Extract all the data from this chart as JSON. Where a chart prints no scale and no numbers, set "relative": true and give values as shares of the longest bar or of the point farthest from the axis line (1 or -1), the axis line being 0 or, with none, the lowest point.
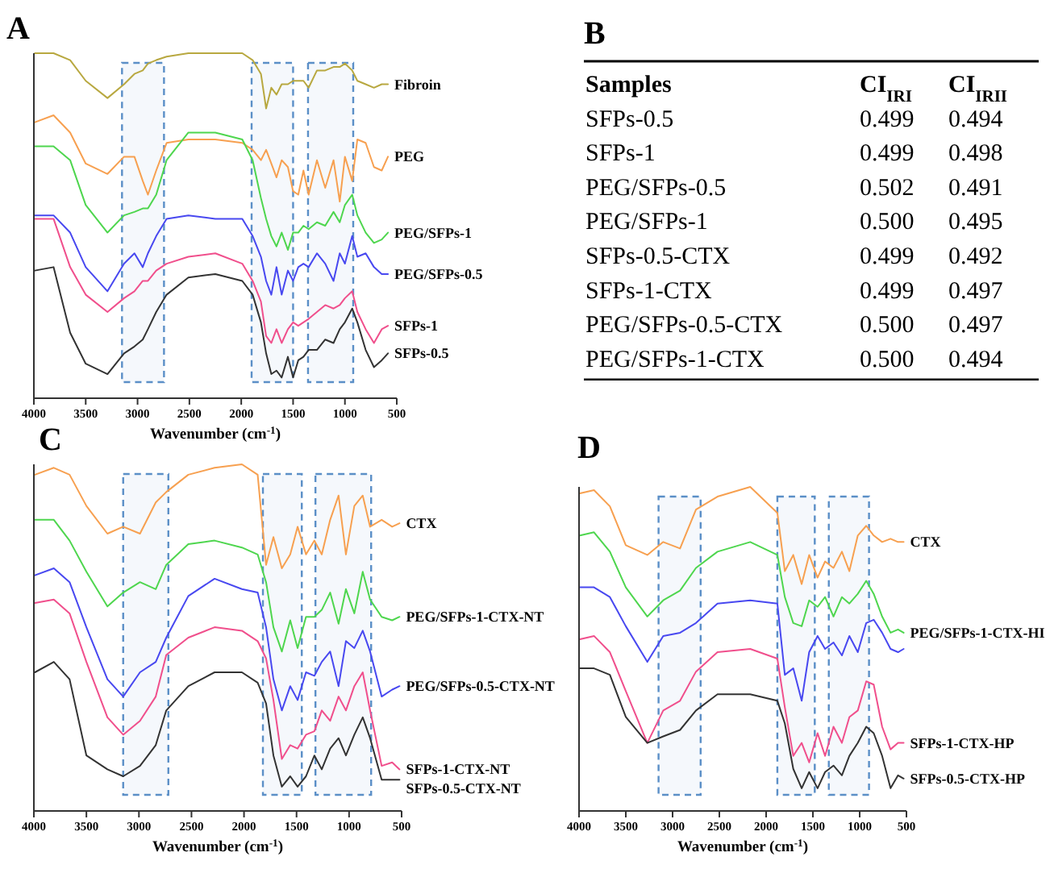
{
  "chart_data": [
    {
      "type": "line",
      "title": "A",
      "xlabel": "Wavenumber (cm$^{-1}$)",
      "relative": true,
      "xlim": [
        4000,
        500
      ],
      "xticks": [
        4000,
        3500,
        3000,
        2500,
        2000,
        1500,
        1000,
        500
      ],
      "x": [
        3990,
        3810,
        3650,
        3500,
        3290,
        3130,
        3030,
        2950,
        2900,
        2820,
        2720,
        2510,
        2250,
        1990,
        1890,
        1810,
        1760,
        1710,
        1660,
        1610,
        1550,
        1500,
        1450,
        1400,
        1350,
        1270,
        1190,
        1110,
        1050,
        1000,
        930,
        880,
        800,
        720,
        645,
        585
      ],
      "bands": [
        {
          "axis": "x",
          "from": 3150,
          "to": 2745,
          "color": "#5b8fc7"
        },
        {
          "axis": "x",
          "from": 1900,
          "to": 1500,
          "color": "#5b8fc7"
        },
        {
          "axis": "x",
          "from": 1356,
          "to": 920,
          "color": "#5b8fc7"
        }
      ],
      "series": [
        {
          "name": "Fibroin",
          "color": "#b8a840",
          "values": [
            1.0,
            1.0,
            0.98,
            0.92,
            0.87,
            0.91,
            0.94,
            0.95,
            0.97,
            0.98,
            0.99,
            1.0,
            1.0,
            1.0,
            0.98,
            0.94,
            0.84,
            0.9,
            0.88,
            0.91,
            0.91,
            0.92,
            0.92,
            0.92,
            0.9,
            0.95,
            0.95,
            0.96,
            0.96,
            0.97,
            0.95,
            0.92,
            0.91,
            0.9,
            0.91,
            0.91
          ]
        },
        {
          "name": "PEG",
          "color": "#f7a050",
          "values": [
            0.8,
            0.82,
            0.77,
            0.68,
            0.65,
            0.7,
            0.7,
            0.63,
            0.59,
            0.66,
            0.74,
            0.75,
            0.75,
            0.74,
            0.72,
            0.69,
            0.72,
            0.68,
            0.64,
            0.69,
            0.67,
            0.6,
            0.59,
            0.66,
            0.59,
            0.69,
            0.61,
            0.69,
            0.57,
            0.7,
            0.63,
            0.75,
            0.74,
            0.67,
            0.66,
            0.7
          ]
        },
        {
          "name": "PEG/SFPs-1",
          "color": "#4ed64e",
          "values": [
            0.73,
            0.73,
            0.69,
            0.56,
            0.48,
            0.53,
            0.54,
            0.55,
            0.55,
            0.59,
            0.69,
            0.77,
            0.77,
            0.75,
            0.69,
            0.58,
            0.52,
            0.47,
            0.44,
            0.48,
            0.43,
            0.48,
            0.48,
            0.5,
            0.49,
            0.51,
            0.5,
            0.54,
            0.51,
            0.56,
            0.59,
            0.53,
            0.48,
            0.45,
            0.46,
            0.48
          ]
        },
        {
          "name": "PEG/SFPs-0.5",
          "color": "#4848f0",
          "values": [
            0.53,
            0.53,
            0.48,
            0.38,
            0.31,
            0.39,
            0.42,
            0.38,
            0.42,
            0.47,
            0.52,
            0.53,
            0.52,
            0.52,
            0.47,
            0.41,
            0.34,
            0.3,
            0.38,
            0.3,
            0.37,
            0.34,
            0.38,
            0.39,
            0.38,
            0.42,
            0.39,
            0.34,
            0.42,
            0.39,
            0.47,
            0.41,
            0.42,
            0.38,
            0.36,
            0.36
          ]
        },
        {
          "name": "SFPs-1",
          "color": "#f04f8c",
          "values": [
            0.52,
            0.52,
            0.38,
            0.3,
            0.25,
            0.29,
            0.31,
            0.34,
            0.34,
            0.37,
            0.39,
            0.41,
            0.42,
            0.39,
            0.34,
            0.28,
            0.18,
            0.16,
            0.2,
            0.16,
            0.2,
            0.22,
            0.21,
            0.22,
            0.23,
            0.25,
            0.27,
            0.26,
            0.27,
            0.29,
            0.31,
            0.25,
            0.2,
            0.16,
            0.2,
            0.21
          ]
        },
        {
          "name": "SFPs-0.5",
          "color": "#333333",
          "values": [
            0.37,
            0.38,
            0.19,
            0.1,
            0.07,
            0.13,
            0.15,
            0.17,
            0.2,
            0.25,
            0.3,
            0.35,
            0.36,
            0.34,
            0.3,
            0.22,
            0.13,
            0.07,
            0.08,
            0.06,
            0.12,
            0.06,
            0.11,
            0.12,
            0.14,
            0.14,
            0.17,
            0.16,
            0.2,
            0.22,
            0.26,
            0.22,
            0.14,
            0.09,
            0.11,
            0.13
          ]
        }
      ]
    },
    {
      "type": "other",
      "title": "B",
      "xlabel": "Samples",
      "categories": [
        "SFPs-0.5",
        "SFPs-1",
        "PEG/SFPs-0.5",
        "PEG/SFPs-1",
        "SFPs-0.5-CTX",
        "SFPs-1-CTX",
        "PEG/SFPs-0.5-CTX",
        "PEG/SFPs-1-CTX"
      ],
      "series": [
        {
          "name": "CI$_{IRI}$",
          "values": [
            0.499,
            0.499,
            0.502,
            0.5,
            0.499,
            0.499,
            0.5,
            0.5
          ],
          "value_labels": [
            "0.499",
            "0.499",
            "0.502",
            "0.500",
            "0.499",
            "0.499",
            "0.500",
            "0.500"
          ]
        },
        {
          "name": "CI$_{IRII}$",
          "values": [
            0.494,
            0.498,
            0.491,
            0.495,
            0.492,
            0.497,
            0.497,
            0.494
          ],
          "value_labels": [
            "0.494",
            "0.498",
            "0.491",
            "0.495",
            "0.492",
            "0.497",
            "0.497",
            "0.494"
          ]
        }
      ]
    },
    {
      "type": "line",
      "title": "C",
      "xlabel": "Wavenumber (cm$^{-1}$)",
      "relative": true,
      "xlim": [
        4000,
        500
      ],
      "xticks": [
        4000,
        3500,
        3000,
        2500,
        2000,
        1500,
        1000,
        500
      ],
      "x": [
        3990,
        3810,
        3660,
        3500,
        3300,
        3150,
        2990,
        2840,
        2740,
        2530,
        2280,
        2020,
        1870,
        1790,
        1720,
        1640,
        1560,
        1490,
        1410,
        1330,
        1260,
        1180,
        1100,
        1030,
        950,
        870,
        800,
        690,
        590,
        520
      ],
      "bands": [
        {
          "axis": "x",
          "from": 3150,
          "to": 2720,
          "color": "#5b8fc7"
        },
        {
          "axis": "x",
          "from": 1820,
          "to": 1450,
          "color": "#5b8fc7"
        },
        {
          "axis": "x",
          "from": 1320,
          "to": 790,
          "color": "#5b8fc7"
        }
      ],
      "series": [
        {
          "name": "CTX",
          "color": "#f7a050",
          "values": [
            0.97,
            0.99,
            0.97,
            0.88,
            0.8,
            0.82,
            0.8,
            0.89,
            0.92,
            0.97,
            0.99,
            1.0,
            0.97,
            0.71,
            0.79,
            0.7,
            0.74,
            0.82,
            0.74,
            0.78,
            0.74,
            0.84,
            0.91,
            0.74,
            0.88,
            0.91,
            0.82,
            0.84,
            0.82,
            0.83
          ]
        },
        {
          "name": "PEG/SFPs-1-CTX-NT",
          "color": "#4ed64e",
          "values": [
            0.84,
            0.84,
            0.78,
            0.69,
            0.59,
            0.63,
            0.66,
            0.64,
            0.71,
            0.77,
            0.78,
            0.76,
            0.74,
            0.66,
            0.53,
            0.46,
            0.55,
            0.47,
            0.56,
            0.56,
            0.58,
            0.63,
            0.54,
            0.64,
            0.57,
            0.69,
            0.61,
            0.56,
            0.55,
            0.56
          ]
        },
        {
          "name": "PEG/SFPs-0.5-CTX-NT",
          "color": "#4848f0",
          "values": [
            0.68,
            0.7,
            0.66,
            0.53,
            0.38,
            0.33,
            0.4,
            0.43,
            0.5,
            0.62,
            0.67,
            0.64,
            0.63,
            0.53,
            0.38,
            0.29,
            0.36,
            0.32,
            0.4,
            0.39,
            0.43,
            0.46,
            0.36,
            0.49,
            0.47,
            0.52,
            0.46,
            0.33,
            0.35,
            0.36
          ]
        },
        {
          "name": "SFPs-1-CTX-NT",
          "color": "#f04f8c",
          "values": [
            0.6,
            0.61,
            0.57,
            0.43,
            0.27,
            0.22,
            0.26,
            0.33,
            0.45,
            0.5,
            0.53,
            0.52,
            0.49,
            0.44,
            0.32,
            0.15,
            0.19,
            0.18,
            0.22,
            0.23,
            0.29,
            0.26,
            0.33,
            0.29,
            0.36,
            0.4,
            0.29,
            0.13,
            0.14,
            0.12
          ]
        },
        {
          "name": "SFPs-0.5-CTX-NT",
          "color": "#333333",
          "values": [
            0.4,
            0.43,
            0.38,
            0.16,
            0.12,
            0.1,
            0.13,
            0.19,
            0.29,
            0.36,
            0.4,
            0.4,
            0.37,
            0.31,
            0.16,
            0.07,
            0.1,
            0.07,
            0.1,
            0.16,
            0.12,
            0.18,
            0.21,
            0.16,
            0.22,
            0.27,
            0.21,
            0.09,
            0.09,
            0.09
          ]
        }
      ]
    },
    {
      "type": "line",
      "title": "D",
      "xlabel": "Wavenumber (cm$^{-1}$)",
      "relative": true,
      "xlim": [
        4000,
        500
      ],
      "xticks": [
        4000,
        3500,
        3000,
        2500,
        2000,
        1500,
        1000,
        500
      ],
      "x": [
        3990,
        3840,
        3670,
        3500,
        3270,
        3100,
        2920,
        2750,
        2520,
        2170,
        1880,
        1800,
        1710,
        1620,
        1540,
        1450,
        1370,
        1280,
        1190,
        1110,
        1020,
        930,
        850,
        760,
        670,
        590,
        530
      ],
      "bands": [
        {
          "axis": "x",
          "from": 3150,
          "to": 2700,
          "color": "#5b8fc7"
        },
        {
          "axis": "x",
          "from": 1880,
          "to": 1480,
          "color": "#5b8fc7"
        },
        {
          "axis": "x",
          "from": 1330,
          "to": 900,
          "color": "#5b8fc7"
        }
      ],
      "series": [
        {
          "name": "CTX",
          "color": "#f7a050",
          "values": [
            0.98,
            0.99,
            0.94,
            0.82,
            0.79,
            0.83,
            0.81,
            0.93,
            0.97,
            1.0,
            0.92,
            0.74,
            0.79,
            0.7,
            0.79,
            0.72,
            0.77,
            0.75,
            0.8,
            0.74,
            0.85,
            0.88,
            0.85,
            0.83,
            0.84,
            0.83,
            0.83
          ]
        },
        {
          "name": "PEG/SFPs-1-CTX-HI",
          "color": "#4ed64e",
          "values": [
            0.85,
            0.86,
            0.8,
            0.69,
            0.6,
            0.65,
            0.68,
            0.75,
            0.8,
            0.83,
            0.79,
            0.66,
            0.58,
            0.57,
            0.65,
            0.63,
            0.66,
            0.6,
            0.66,
            0.64,
            0.67,
            0.71,
            0.67,
            0.6,
            0.55,
            0.56,
            0.55
          ]
        },
        {
          "color": "#4848f0",
          "values": [
            0.69,
            0.69,
            0.66,
            0.57,
            0.46,
            0.54,
            0.55,
            0.58,
            0.64,
            0.65,
            0.64,
            0.42,
            0.44,
            0.34,
            0.49,
            0.54,
            0.5,
            0.52,
            0.48,
            0.54,
            0.49,
            0.58,
            0.59,
            0.55,
            0.5,
            0.49,
            0.5
          ]
        },
        {
          "name": "SFPs-1-CTX-HP",
          "color": "#f04f8c",
          "values": [
            0.53,
            0.54,
            0.49,
            0.37,
            0.21,
            0.31,
            0.34,
            0.43,
            0.49,
            0.5,
            0.47,
            0.32,
            0.17,
            0.21,
            0.15,
            0.24,
            0.17,
            0.26,
            0.21,
            0.29,
            0.31,
            0.4,
            0.39,
            0.26,
            0.19,
            0.21,
            0.21
          ]
        },
        {
          "name": "SFPs-0.5-CTX-HP",
          "color": "#333333",
          "values": [
            0.44,
            0.44,
            0.42,
            0.29,
            0.21,
            0.23,
            0.25,
            0.31,
            0.36,
            0.36,
            0.34,
            0.27,
            0.13,
            0.07,
            0.12,
            0.07,
            0.12,
            0.14,
            0.11,
            0.17,
            0.21,
            0.26,
            0.24,
            0.17,
            0.07,
            0.11,
            0.1
          ]
        }
      ]
    }
  ]
}
